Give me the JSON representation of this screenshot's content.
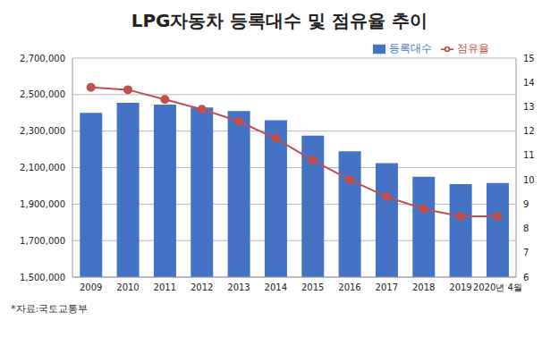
{
  "chart_data": {
    "type": "bar",
    "title": "LPG자동차 등록대수 및 점유율 추이",
    "annotations": [
      "*자료:국토교통부"
    ],
    "categories": [
      "2009",
      "2010",
      "2011",
      "2012",
      "2013",
      "2014",
      "2015",
      "2016",
      "2017",
      "2018",
      "2019",
      "2020년 4월"
    ],
    "series": [
      {
        "name": "등록대수",
        "type": "bar",
        "color": "#4472c4",
        "values": [
          2400000,
          2455000,
          2445000,
          2430000,
          2410000,
          2360000,
          2275000,
          2190000,
          2125000,
          2050000,
          2010000,
          2015000
        ]
      },
      {
        "name": "점유율",
        "type": "line",
        "color": "#c0504d",
        "marker": "circle",
        "axis": "y2",
        "values": [
          13.8,
          13.7,
          13.3,
          12.9,
          12.4,
          11.7,
          10.8,
          10.0,
          9.3,
          8.8,
          8.5,
          8.5
        ]
      }
    ],
    "ylim": [
      1500000,
      2700000
    ],
    "yticks": [
      {
        "value": 1500000,
        "label": "1,500,000"
      },
      {
        "value": 1700000,
        "label": "1,700,000"
      },
      {
        "value": 1900000,
        "label": "1,900,000"
      },
      {
        "value": 2100000,
        "label": "2,100,000"
      },
      {
        "value": 2300000,
        "label": "2,300,000"
      },
      {
        "value": 2500000,
        "label": "2,500,000"
      },
      {
        "value": 2700000,
        "label": "2,700,000"
      }
    ],
    "y2lim": [
      6,
      15
    ],
    "y2ticks": [
      6,
      7,
      8,
      9,
      10,
      11,
      12,
      13,
      14,
      15
    ],
    "grid": true,
    "legend": "top-right"
  }
}
